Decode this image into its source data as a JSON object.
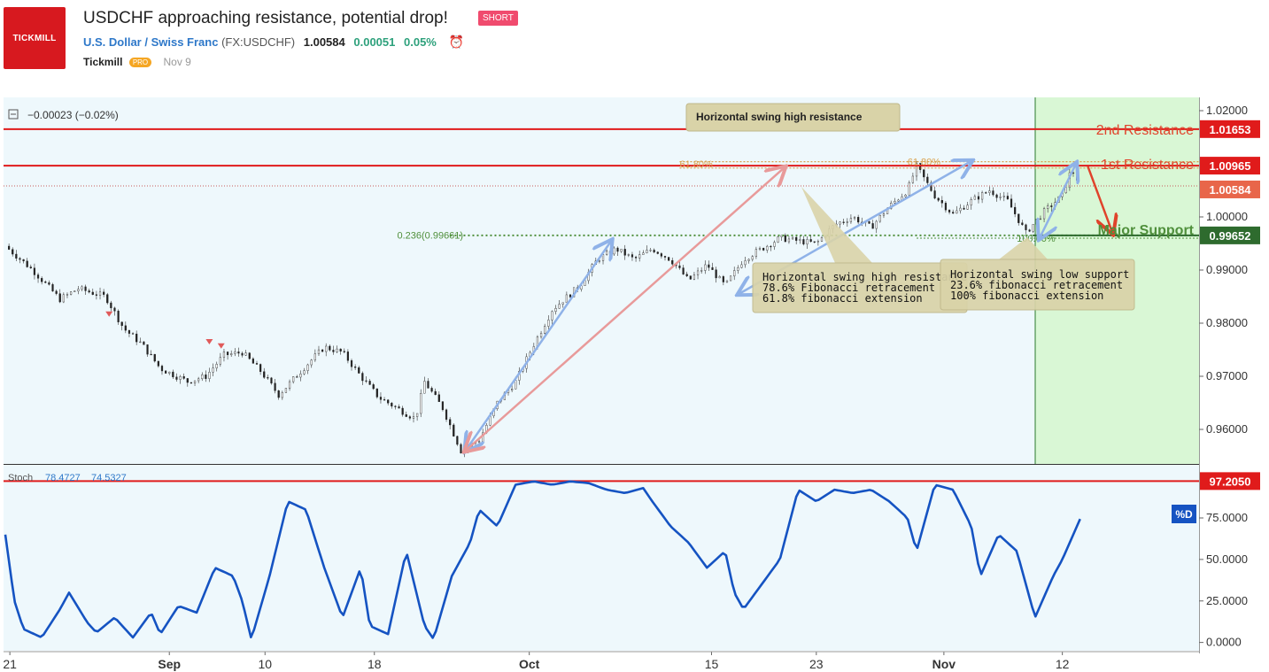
{
  "header": {
    "logo_text": "TICKMILL",
    "title": "USDCHF approaching resistance, potential drop!",
    "badge": "SHORT",
    "symbol_name": "U.S. Dollar / Swiss Franc",
    "symbol_code": "(FX:USDCHF)",
    "price": "1.00584",
    "change": "0.00051",
    "change_pct": "0.05%",
    "author": "Tickmill",
    "author_badge": "PRO",
    "date": "Nov 9"
  },
  "colors": {
    "chart_bg": "#eef8fc",
    "forecast_bg": "#d9f7d5",
    "resistance": "#e01b1b",
    "support": "#4f8f3b",
    "stoch_line": "#1553c2",
    "fib_orange": "#d9a04c"
  },
  "chart_data": [
    {
      "type": "candlestick",
      "legend": "−0.00023 (−0.02%)",
      "x_ticks": [
        "21",
        "Sep",
        "10",
        "18",
        "Oct",
        "15",
        "23",
        "Nov",
        "12"
      ],
      "y_ticks": [
        "1.02000",
        "1.00000",
        "0.99000",
        "0.98000",
        "0.97000",
        "0.96000"
      ],
      "ylim": [
        0.9535,
        1.0225
      ],
      "close_path": [
        [
          0,
          0.9945
        ],
        [
          3,
          0.99
        ],
        [
          6,
          0.9845
        ],
        [
          8,
          0.9865
        ],
        [
          11,
          0.985
        ],
        [
          13,
          0.979
        ],
        [
          15,
          0.976
        ],
        [
          17,
          0.9715
        ],
        [
          20,
          0.969
        ],
        [
          22,
          0.97
        ],
        [
          24,
          0.974
        ],
        [
          26,
          0.9745
        ],
        [
          28,
          0.971
        ],
        [
          30,
          0.9665
        ],
        [
          33,
          0.972
        ],
        [
          35,
          0.9755
        ],
        [
          37,
          0.9745
        ],
        [
          39,
          0.97
        ],
        [
          41,
          0.966
        ],
        [
          43,
          0.964
        ],
        [
          45,
          0.962
        ],
        [
          46,
          0.969
        ],
        [
          48,
          0.964
        ],
        [
          50,
          0.956
        ],
        [
          52,
          0.958
        ],
        [
          54,
          0.965
        ],
        [
          56,
          0.969
        ],
        [
          58,
          0.976
        ],
        [
          60,
          0.9825
        ],
        [
          63,
          0.987
        ],
        [
          65,
          0.992
        ],
        [
          67,
          0.994
        ],
        [
          69,
          0.992
        ],
        [
          71,
          0.994
        ],
        [
          73,
          0.992
        ],
        [
          75,
          0.988
        ],
        [
          77,
          0.991
        ],
        [
          79,
          0.987
        ],
        [
          81,
          0.992
        ],
        [
          83,
          0.994
        ],
        [
          85,
          0.996
        ],
        [
          87,
          0.9955
        ],
        [
          89,
          0.995
        ],
        [
          91,
          0.9985
        ],
        [
          93,
          1.0
        ],
        [
          95,
          0.998
        ],
        [
          97,
          1.002
        ],
        [
          99,
          1.005
        ],
        [
          100,
          1.0095
        ],
        [
          102,
          1.004
        ],
        [
          104,
          1.0005
        ],
        [
          106,
          1.003
        ],
        [
          108,
          1.005
        ],
        [
          110,
          1.003
        ],
        [
          112,
          0.997
        ],
        [
          114,
          1.001
        ],
        [
          116,
          1.004
        ],
        [
          117,
          1.009
        ],
        [
          118,
          1.006
        ]
      ],
      "x_range": [
        0,
        131
      ],
      "resistances": [
        {
          "label": "2nd Resistance",
          "value": 1.01653,
          "value_label": "1.01653"
        },
        {
          "label": "1st Resistance",
          "value": 1.00965,
          "value_label": "1.00965"
        }
      ],
      "support": {
        "label": "Major Support",
        "value": 0.99652,
        "value_label": "0.99652"
      },
      "last_price": {
        "value": 1.00584,
        "value_label": "1.00584"
      },
      "fib_labels": [
        {
          "text": "61.80%",
          "x": 74,
          "y": 1.01
        },
        {
          "text": "61.80%",
          "x": 99,
          "y": 1.0104
        },
        {
          "text": "0.236(0.99661)",
          "x": 43,
          "y": 0.9966
        },
        {
          "text": "100.00%",
          "x": 111,
          "y": 0.996
        }
      ],
      "annotations": [
        {
          "text": [
            "Horizontal swing high resistance"
          ]
        },
        {
          "text": [
            "Horizontal swing high resistance",
            "78.6% Fibonacci retracement",
            "61.8% fibonacci extension"
          ]
        },
        {
          "text": [
            "Horizontal swing low support",
            "23.6% fibonacci retracement",
            "100% fibonacci extension"
          ]
        }
      ]
    },
    {
      "type": "line",
      "legend_name": "Stoch",
      "legend_v1": "78.4727",
      "legend_v2": "74.5327",
      "y_ticks": [
        "75.0000",
        "50.0000",
        "25.0000",
        "0.0000"
      ],
      "ylim": [
        -5,
        107
      ],
      "level": {
        "value": 97.205,
        "label": "97.2050"
      },
      "tag": "%D",
      "series": [
        [
          0,
          65
        ],
        [
          1,
          25
        ],
        [
          2,
          8
        ],
        [
          4,
          3
        ],
        [
          6,
          20
        ],
        [
          7,
          30
        ],
        [
          9,
          12
        ],
        [
          10,
          6
        ],
        [
          12,
          15
        ],
        [
          14,
          3
        ],
        [
          16,
          18
        ],
        [
          17,
          5
        ],
        [
          19,
          22
        ],
        [
          21,
          18
        ],
        [
          23,
          45
        ],
        [
          25,
          40
        ],
        [
          26,
          25
        ],
        [
          27,
          2
        ],
        [
          29,
          40
        ],
        [
          31,
          85
        ],
        [
          33,
          80
        ],
        [
          35,
          45
        ],
        [
          37,
          15
        ],
        [
          39,
          45
        ],
        [
          40,
          10
        ],
        [
          42,
          5
        ],
        [
          44,
          55
        ],
        [
          46,
          10
        ],
        [
          47,
          2
        ],
        [
          49,
          40
        ],
        [
          51,
          60
        ],
        [
          52,
          80
        ],
        [
          54,
          70
        ],
        [
          56,
          95
        ],
        [
          58,
          97
        ],
        [
          60,
          95
        ],
        [
          62,
          97
        ],
        [
          64,
          96
        ],
        [
          66,
          92
        ],
        [
          68,
          90
        ],
        [
          70,
          93
        ],
        [
          71,
          85
        ],
        [
          73,
          70
        ],
        [
          75,
          60
        ],
        [
          77,
          45
        ],
        [
          79,
          55
        ],
        [
          80,
          30
        ],
        [
          81,
          20
        ],
        [
          83,
          35
        ],
        [
          85,
          50
        ],
        [
          87,
          92
        ],
        [
          89,
          85
        ],
        [
          91,
          92
        ],
        [
          93,
          90
        ],
        [
          95,
          92
        ],
        [
          97,
          85
        ],
        [
          99,
          75
        ],
        [
          100,
          55
        ],
        [
          102,
          95
        ],
        [
          104,
          92
        ],
        [
          106,
          70
        ],
        [
          107,
          40
        ],
        [
          109,
          65
        ],
        [
          111,
          55
        ],
        [
          112,
          35
        ],
        [
          113,
          15
        ],
        [
          115,
          40
        ],
        [
          116,
          50
        ],
        [
          118,
          75
        ]
      ],
      "x_range": [
        0,
        131
      ]
    }
  ]
}
